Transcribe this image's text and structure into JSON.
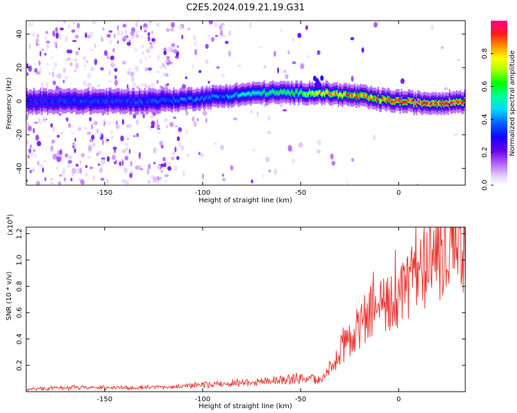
{
  "title": "C2E5.2024.019.21.19.G31",
  "chart_data": [
    {
      "type": "heatmap",
      "xlabel": "Height of straight line (km)",
      "ylabel": "Frequency (Hz)",
      "xlim": [
        -190,
        34
      ],
      "ylim": [
        -50,
        48
      ],
      "xticks": [
        -150,
        -100,
        -50,
        0
      ],
      "xtick_labels": [
        "-150",
        "-100",
        "-50",
        "0"
      ],
      "yticks": [
        -40,
        -20,
        0,
        20,
        40
      ],
      "ytick_labels": [
        "-40",
        "-20",
        "0",
        "20",
        "40"
      ],
      "colorbar": {
        "label": "Normalized spectral amplitude",
        "range": [
          0,
          1
        ],
        "ticks": [
          0.0,
          0.2,
          0.4,
          0.6,
          0.8
        ],
        "tick_labels": [
          "0.0",
          "0.2",
          "0.4",
          "0.6",
          "0.8"
        ],
        "colormap": "rainbow: white-lavender-violet-blue-cyan-green-yellow-orange-red-magenta"
      },
      "ridge": {
        "x": [
          -190,
          -170,
          -150,
          -130,
          -110,
          -100,
          -90,
          -80,
          -70,
          -60,
          -50,
          -45,
          -40,
          -30,
          -20,
          -10,
          0,
          10,
          20,
          34
        ],
        "frequency_hz": [
          0,
          0,
          0,
          0,
          1,
          2,
          3,
          4,
          5,
          5,
          5,
          5,
          5,
          4,
          3,
          1,
          0,
          -1,
          -1,
          0
        ],
        "peak_amplitude": [
          0.3,
          0.35,
          0.35,
          0.35,
          0.4,
          0.4,
          0.4,
          0.5,
          0.55,
          0.6,
          0.6,
          0.75,
          0.8,
          0.85,
          0.9,
          0.9,
          0.95,
          0.95,
          0.95,
          0.95
        ]
      },
      "grid": false
    },
    {
      "type": "line",
      "xlabel": "Height of straight line (km)",
      "ylabel": "SNR (10 * v/v)",
      "y_multiplier": "(x10^4)",
      "xlim": [
        -190,
        34
      ],
      "ylim": [
        0,
        1.25
      ],
      "xticks": [
        -150,
        -100,
        -50,
        0
      ],
      "xtick_labels": [
        "-150",
        "-100",
        "-50",
        "0"
      ],
      "yticks": [
        0.2,
        0.4,
        0.6,
        0.8,
        1.0,
        1.2
      ],
      "ytick_labels": [
        "0.2",
        "0.4",
        "0.6",
        "0.8",
        "1.0",
        "1.2"
      ],
      "color": "#e8322c",
      "x": [
        -190,
        -170,
        -150,
        -130,
        -110,
        -100,
        -90,
        -80,
        -70,
        -60,
        -50,
        -45,
        -40,
        -35,
        -30,
        -25,
        -20,
        -15,
        -10,
        -5,
        0,
        5,
        10,
        15,
        20,
        25,
        30,
        34
      ],
      "y": [
        0.02,
        0.03,
        0.03,
        0.03,
        0.04,
        0.05,
        0.06,
        0.07,
        0.08,
        0.09,
        0.1,
        0.1,
        0.08,
        0.18,
        0.3,
        0.4,
        0.5,
        0.6,
        0.62,
        0.68,
        0.72,
        0.8,
        0.85,
        0.95,
        1.05,
        1.08,
        1.1,
        1.1
      ],
      "spike": {
        "x": 13,
        "y": 1.25
      },
      "grid": false
    }
  ]
}
